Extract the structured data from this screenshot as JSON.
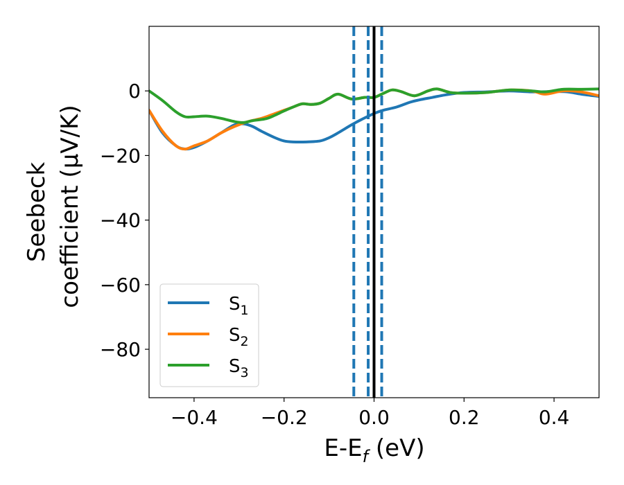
{
  "chart_data": {
    "type": "line",
    "xlabel": "E-E",
    "xlabel_sub": "f",
    "xlabel_unit": " (eV)",
    "ylabel_line1": "Seebeck",
    "ylabel_line2": "coefficient  (μV/K)",
    "xlim": [
      -0.5,
      0.5
    ],
    "ylim": [
      -95,
      20
    ],
    "xticks": [
      -0.4,
      -0.2,
      0.0,
      0.2,
      0.4
    ],
    "xtick_labels": [
      "−0.4",
      "−0.2",
      "0.0",
      "0.2",
      "0.4"
    ],
    "yticks": [
      0,
      -20,
      -40,
      -60,
      -80
    ],
    "ytick_labels": [
      "0",
      "−20",
      "−40",
      "−60",
      "−80"
    ],
    "grid": false,
    "legend_placement": "lower-left",
    "vlines": [
      {
        "x": -0.045,
        "style": "dashed",
        "color": "#1f77b4"
      },
      {
        "x": -0.013,
        "style": "dashed",
        "color": "#1f77b4"
      },
      {
        "x": 0.017,
        "style": "dashed",
        "color": "#1f77b4"
      },
      {
        "x": 0.0,
        "style": "solid",
        "color": "#000000"
      }
    ],
    "series": [
      {
        "name": "S",
        "sub": "1",
        "color": "#1f77b4",
        "x": [
          -0.5,
          -0.47,
          -0.44,
          -0.42,
          -0.4,
          -0.37,
          -0.34,
          -0.31,
          -0.29,
          -0.27,
          -0.25,
          -0.22,
          -0.2,
          -0.18,
          -0.15,
          -0.12,
          -0.1,
          -0.08,
          -0.05,
          -0.03,
          0.0,
          0.02,
          0.05,
          0.08,
          0.1,
          0.13,
          0.16,
          0.2,
          0.25,
          0.3,
          0.35,
          0.4,
          0.43,
          0.46,
          0.5
        ],
        "y": [
          -6,
          -13,
          -17,
          -18,
          -17.5,
          -15.5,
          -13,
          -10.5,
          -10.2,
          -11,
          -12.5,
          -14.5,
          -15.5,
          -15.8,
          -15.8,
          -15.5,
          -14.5,
          -13,
          -10.5,
          -9,
          -7,
          -6,
          -5,
          -3.5,
          -2.8,
          -2,
          -1.2,
          -0.5,
          -0.3,
          0,
          -0.3,
          -0.2,
          -0.3,
          -1,
          -1.7
        ]
      },
      {
        "name": "S",
        "sub": "2",
        "color": "#ff7f0e",
        "x": [
          -0.5,
          -0.47,
          -0.44,
          -0.42,
          -0.4,
          -0.37,
          -0.34,
          -0.31,
          -0.28,
          -0.25,
          -0.22,
          -0.2,
          -0.18,
          -0.16,
          -0.14,
          -0.12,
          -0.1,
          -0.08,
          -0.05,
          -0.02,
          0.0,
          0.02,
          0.04,
          0.06,
          0.09,
          0.12,
          0.14,
          0.17,
          0.2,
          0.25,
          0.3,
          0.35,
          0.38,
          0.42,
          0.46,
          0.5
        ],
        "y": [
          -6,
          -12.5,
          -17,
          -18,
          -17,
          -15.5,
          -13,
          -11,
          -9.5,
          -8.5,
          -7,
          -6,
          -5,
          -4,
          -4.2,
          -3.8,
          -2.3,
          -1,
          -2.5,
          -2,
          -2,
          -0.8,
          0.3,
          -0.2,
          -1.5,
          0,
          0.6,
          -0.5,
          -0.7,
          -0.5,
          0.3,
          0,
          -1,
          0,
          -0.3,
          -1.5
        ]
      },
      {
        "name": "S",
        "sub": "3",
        "color": "#2ca02c",
        "x": [
          -0.5,
          -0.47,
          -0.44,
          -0.42,
          -0.4,
          -0.37,
          -0.34,
          -0.31,
          -0.29,
          -0.27,
          -0.24,
          -0.22,
          -0.2,
          -0.18,
          -0.16,
          -0.14,
          -0.12,
          -0.1,
          -0.08,
          -0.05,
          -0.02,
          0.0,
          0.02,
          0.04,
          0.06,
          0.09,
          0.12,
          0.14,
          0.17,
          0.2,
          0.25,
          0.3,
          0.35,
          0.38,
          0.42,
          0.46,
          0.5
        ],
        "y": [
          0,
          -3,
          -6.5,
          -8,
          -8,
          -7.8,
          -8.5,
          -9.5,
          -9.8,
          -9.2,
          -8.6,
          -7.5,
          -6.2,
          -5,
          -4,
          -4.2,
          -3.8,
          -2.3,
          -1,
          -2.5,
          -2,
          -2,
          -0.8,
          0.3,
          -0.2,
          -1.5,
          0,
          0.6,
          -0.5,
          -0.7,
          -0.5,
          0.3,
          0,
          -0.3,
          0.5,
          0.5,
          0.6
        ]
      }
    ]
  }
}
